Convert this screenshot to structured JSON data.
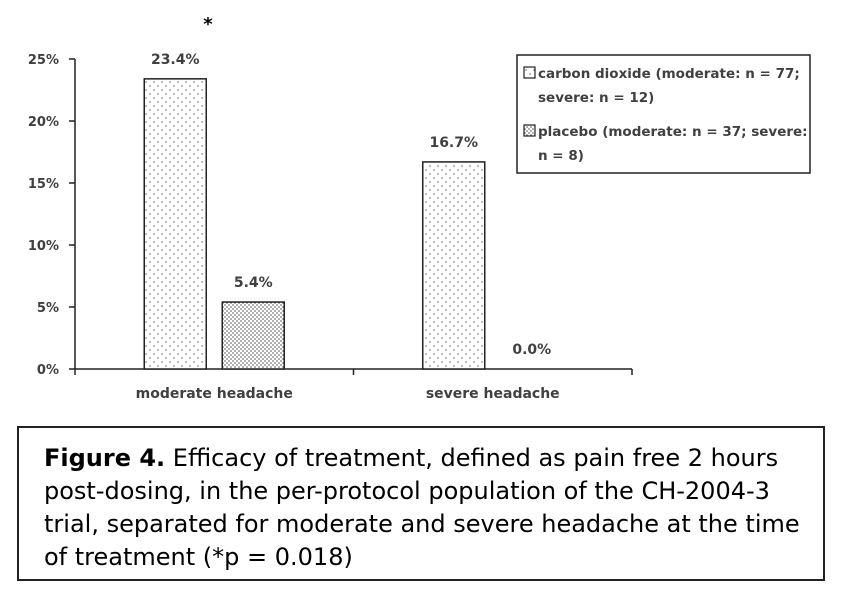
{
  "chart_data": {
    "type": "bar",
    "categories": [
      "moderate headache",
      "severe headache"
    ],
    "series": [
      {
        "name": "carbon dioxide (moderate: n = 77; severe: n = 12)",
        "values": [
          23.4,
          16.7
        ],
        "labels": [
          "23.4%",
          "16.7%"
        ],
        "pattern": "sparse-dots"
      },
      {
        "name": "placebo (moderate: n = 37; severe: n = 8)",
        "values": [
          5.4,
          0.0
        ],
        "labels": [
          "5.4%",
          "0.0%"
        ],
        "pattern": "dense-dots"
      }
    ],
    "yticks": [
      "0%",
      "5%",
      "10%",
      "15%",
      "20%",
      "25%"
    ],
    "ylim": [
      0,
      25
    ],
    "annotation": "*",
    "legend_position": "top-right",
    "legend_lines": [
      [
        "carbon dioxide (moderate: n = 77;",
        "severe: n = 12)"
      ],
      [
        "placebo (moderate: n = 37; severe:",
        "n = 8)"
      ]
    ]
  },
  "caption": {
    "label": "Figure 4.",
    "text": " Efficacy of treatment, defined as pain free 2 hours post-dosing, in the per-protocol population of the CH-2004-3 trial, separated for moderate and severe headache at the time of treatment (*p = 0.018)"
  }
}
